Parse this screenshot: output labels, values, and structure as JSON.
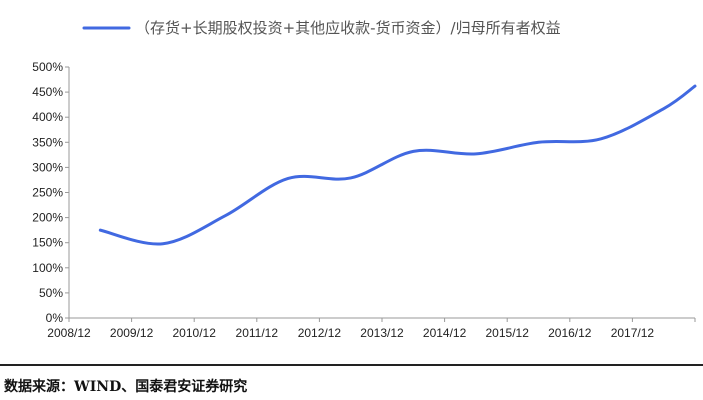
{
  "chart_data": {
    "type": "line",
    "title": "",
    "xlabel": "",
    "ylabel": "",
    "categories": [
      "2008/12",
      "2009/12",
      "2010/12",
      "2011/12",
      "2012/12",
      "2013/12",
      "2014/12",
      "2015/12",
      "2016/12",
      "2017/12"
    ],
    "y_ticks": [
      "0%",
      "50%",
      "100%",
      "150%",
      "200%",
      "250%",
      "300%",
      "350%",
      "400%",
      "450%",
      "500%"
    ],
    "ylim": [
      0,
      5
    ],
    "grid": false,
    "legend_position": "top",
    "series": [
      {
        "name": "（存货+长期股权投资+其他应收款-货币资金）/归母所有者权益",
        "color": "#4169e1",
        "points": [
          {
            "x": 0.0,
            "y": 1.75
          },
          {
            "x": 1.0,
            "y": 1.48
          },
          {
            "x": 2.0,
            "y": 2.04
          },
          {
            "x": 3.0,
            "y": 2.78
          },
          {
            "x": 4.0,
            "y": 2.79
          },
          {
            "x": 5.0,
            "y": 3.32
          },
          {
            "x": 6.0,
            "y": 3.27
          },
          {
            "x": 7.0,
            "y": 3.5
          },
          {
            "x": 8.0,
            "y": 3.57
          },
          {
            "x": 9.0,
            "y": 4.17
          },
          {
            "x": 9.5,
            "y": 4.62
          }
        ]
      }
    ]
  },
  "source": "数据来源：WIND、国泰君安证券研究"
}
